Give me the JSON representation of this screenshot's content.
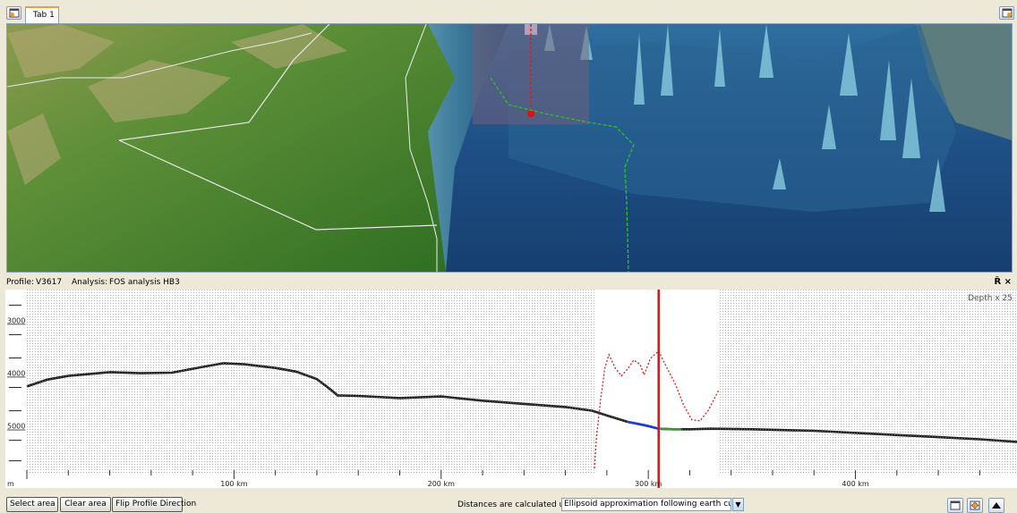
{
  "tabs": [
    {
      "label": "Tab 1"
    }
  ],
  "profile": {
    "profile_label": "Profile:",
    "profile_value": "V3617",
    "analysis_label": "Analysis:",
    "analysis_value": "FOS analysis HB3",
    "header_icons": "Ȓ ×",
    "depth_label": "Depth x 25"
  },
  "chart_data": {
    "type": "line",
    "xlabel": "",
    "ylabel": "",
    "x_unit_label": "m",
    "xlim": [
      0,
      478
    ],
    "ylim": [
      5700,
      2350
    ],
    "x_ticks": [
      {
        "value": 100,
        "label": "100 km"
      },
      {
        "value": 200,
        "label": "200 km"
      },
      {
        "value": 300,
        "label": "300 km"
      },
      {
        "value": 400,
        "label": "400 km"
      }
    ],
    "y_ticks": [
      {
        "value": 3000,
        "label": "3000"
      },
      {
        "value": 4000,
        "label": "4000"
      },
      {
        "value": 5000,
        "label": "5000"
      }
    ],
    "analysis_window": [
      274,
      334
    ],
    "cursor_x": 305,
    "series": [
      {
        "kind": "profile",
        "color": "#1a1a1a",
        "points": [
          [
            0,
            4150
          ],
          [
            10,
            4020
          ],
          [
            20,
            3950
          ],
          [
            40,
            3880
          ],
          [
            55,
            3900
          ],
          [
            70,
            3890
          ],
          [
            85,
            3780
          ],
          [
            95,
            3710
          ],
          [
            105,
            3730
          ],
          [
            120,
            3800
          ],
          [
            130,
            3870
          ],
          [
            140,
            4010
          ],
          [
            147,
            4220
          ],
          [
            150,
            4320
          ],
          [
            160,
            4330
          ],
          [
            180,
            4370
          ],
          [
            200,
            4340
          ],
          [
            220,
            4420
          ],
          [
            240,
            4480
          ],
          [
            260,
            4540
          ],
          [
            273,
            4610
          ],
          [
            280,
            4700
          ],
          [
            290,
            4820
          ],
          [
            300,
            4900
          ],
          [
            305,
            4950
          ],
          [
            312,
            4960
          ],
          [
            320,
            4960
          ],
          [
            330,
            4950
          ],
          [
            350,
            4960
          ],
          [
            380,
            4990
          ],
          [
            410,
            5050
          ],
          [
            440,
            5110
          ],
          [
            460,
            5150
          ],
          [
            478,
            5200
          ]
        ]
      },
      {
        "kind": "highlight",
        "color": "#1d3fd6",
        "points": [
          [
            290,
            4820
          ],
          [
            298,
            4880
          ],
          [
            305,
            4950
          ]
        ]
      },
      {
        "kind": "highlight",
        "color": "#2e9e30",
        "points": [
          [
            305,
            4950
          ],
          [
            312,
            4960
          ],
          [
            316,
            4960
          ]
        ]
      },
      {
        "kind": "analysis",
        "color": "#d42020",
        "points": [
          [
            274,
            5700
          ],
          [
            275,
            5100
          ],
          [
            277,
            4400
          ],
          [
            279,
            3800
          ],
          [
            281,
            3550
          ],
          [
            284,
            3800
          ],
          [
            287,
            3950
          ],
          [
            290,
            3820
          ],
          [
            293,
            3650
          ],
          [
            296,
            3730
          ],
          [
            298,
            3930
          ],
          [
            301,
            3620
          ],
          [
            305,
            3480
          ],
          [
            309,
            3800
          ],
          [
            313,
            4100
          ],
          [
            317,
            4500
          ],
          [
            321,
            4780
          ],
          [
            325,
            4800
          ],
          [
            329,
            4600
          ],
          [
            334,
            4220
          ]
        ]
      }
    ]
  },
  "bottom": {
    "select_area": "Select area",
    "clear_area": "Clear area",
    "flip_profile": "Flip Profile Direction",
    "distances_label": "Distances are calculated using",
    "method_value": "Ellipsoid approximation following earth curvature"
  }
}
